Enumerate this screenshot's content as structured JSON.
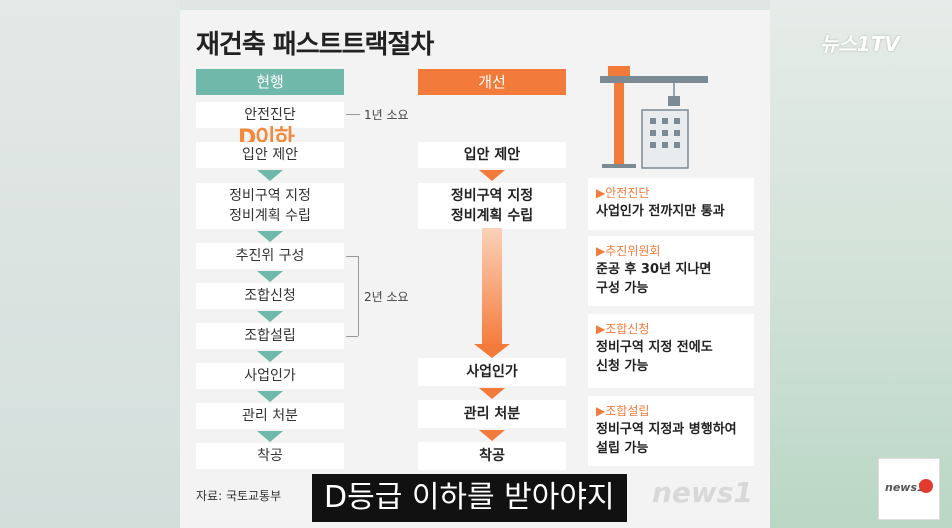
{
  "title": "재건축 패스트트랙절차",
  "columns": {
    "current": "현행",
    "improved": "개선"
  },
  "current_steps": [
    "안전진단",
    "입안 제안",
    "정비구역 지정",
    "정비계획 수립",
    "추진위 구성",
    "조합신청",
    "조합설립",
    "사업인가",
    "관리 처분",
    "착공"
  ],
  "improved_steps": [
    "입안 제안",
    "정비구역 지정",
    "정비계획 수립",
    "사업인가",
    "관리 처분",
    "착공"
  ],
  "overlay_label": "D이하",
  "duration_notes": [
    "1년 소요",
    "2년 소요"
  ],
  "info_boxes": [
    {
      "head": "안전진단",
      "body": [
        "사업인가 전까지만 통과"
      ]
    },
    {
      "head": "추진위원회",
      "body": [
        "준공 후 30년 지나면",
        "구성 가능"
      ]
    },
    {
      "head": "조합신청",
      "body": [
        "정비구역 지정 전에도",
        "신청 가능"
      ]
    },
    {
      "head": "조합설립",
      "body": [
        "정비구역 지정과 병행하여",
        "설립 가능"
      ]
    }
  ],
  "source": "자료: 국토교통부",
  "subtitle": "D등급 이하를 받아야지",
  "broadcaster_logo": "뉴스1TV",
  "watermark": "news1",
  "mini_logo": "news1",
  "colors": {
    "current": "#6fb8aa",
    "improved": "#f27a3a"
  }
}
